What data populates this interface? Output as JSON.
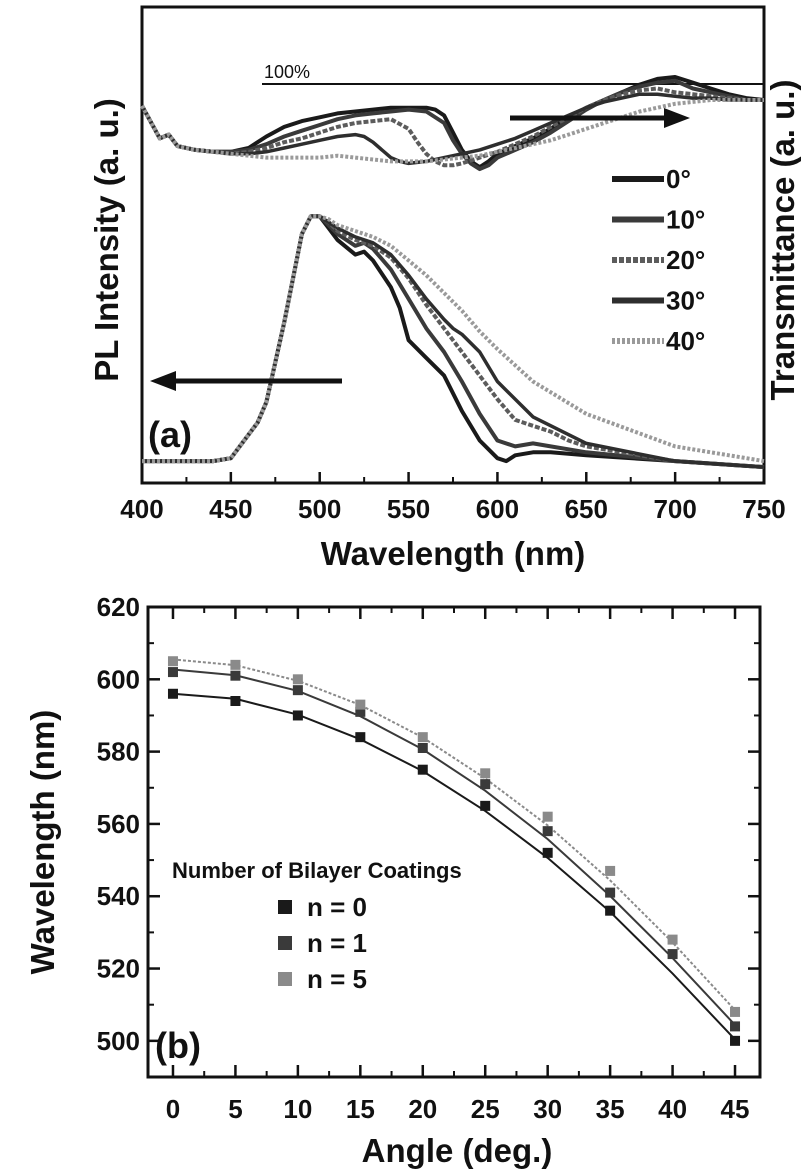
{
  "chart_data": [
    {
      "panel": "a",
      "type": "line",
      "panel_label": "(a)",
      "xlabel": "Wavelength (nm)",
      "ylabel_left": "PL Intensity (a. u.)",
      "ylabel_right": "Transmittance (a. u.)",
      "xlim": [
        400,
        750
      ],
      "xticks": [
        400,
        450,
        500,
        550,
        600,
        650,
        700,
        750
      ],
      "reference_line_label": "100%",
      "legend_placement": "right",
      "colors": {
        "0": "#1a1a1a",
        "10": "#3a3a3a",
        "20": "#5c5c5c",
        "30": "#2e2e2e",
        "40": "#9a9a9a"
      },
      "series": [
        {
          "name": "0°",
          "transmittance": {
            "x": [
              400,
              410,
              415,
              420,
              430,
              440,
              450,
              460,
              470,
              480,
              490,
              500,
              510,
              520,
              530,
              540,
              550,
              560,
              565,
              570,
              575,
              580,
              585,
              590,
              595,
              600,
              610,
              620,
              630,
              640,
              650,
              660,
              670,
              680,
              690,
              700,
              710,
              720,
              730,
              740,
              750
            ],
            "y": [
              97,
              80,
              82,
              76,
              74,
              73,
              73,
              75,
              81,
              86,
              89,
              91,
              93,
              94,
              95,
              96,
              96,
              96,
              95,
              92,
              83,
              74,
              68,
              65,
              68,
              72,
              76,
              80,
              85,
              91,
              96,
              100,
              104,
              108,
              111,
              112,
              109,
              106,
              103,
              101,
              100
            ]
          },
          "pl": {
            "x": [
              400,
              440,
              450,
              455,
              460,
              465,
              470,
              480,
              490,
              495,
              500,
              505,
              510,
              520,
              525,
              530,
              540,
              545,
              550,
              560,
              570,
              580,
              590,
              600,
              605,
              610,
              620,
              630,
              650,
              700,
              750
            ],
            "y": [
              3,
              3,
              4,
              8,
              12,
              16,
              23,
              50,
              80,
              86,
              86,
              82,
              78,
              73,
              74,
              71,
              62,
              55,
              44,
              38,
              32,
              20,
              10,
              4,
              3,
              5,
              6,
              6,
              5,
              3,
              1
            ]
          }
        },
        {
          "name": "10°",
          "transmittance": {
            "x": [
              400,
              410,
              415,
              420,
              430,
              440,
              450,
              460,
              470,
              480,
              490,
              500,
              510,
              520,
              530,
              540,
              550,
              560,
              570,
              575,
              580,
              585,
              590,
              595,
              600,
              610,
              620,
              630,
              640,
              650,
              660,
              670,
              680,
              690,
              700,
              710,
              720,
              730,
              740,
              750
            ],
            "y": [
              97,
              80,
              82,
              76,
              74,
              73,
              73,
              74,
              77,
              81,
              84,
              87,
              90,
              92,
              93,
              94,
              95,
              94,
              88,
              79,
              72,
              67,
              64,
              66,
              70,
              74,
              78,
              83,
              89,
              95,
              100,
              104,
              107,
              109,
              110,
              106,
              104,
              102,
              100,
              100
            ]
          },
          "pl": {
            "x": [
              400,
              440,
              450,
              455,
              460,
              465,
              470,
              480,
              490,
              495,
              500,
              505,
              510,
              520,
              525,
              530,
              540,
              550,
              560,
              570,
              580,
              590,
              600,
              610,
              620,
              630,
              650,
              700,
              750
            ],
            "y": [
              3,
              3,
              4,
              8,
              12,
              16,
              23,
              50,
              80,
              86,
              86,
              83,
              80,
              76,
              77,
              75,
              68,
              58,
              48,
              40,
              30,
              19,
              10,
              8,
              9,
              8,
              6,
              3,
              1
            ]
          }
        },
        {
          "name": "20°",
          "transmittance": {
            "x": [
              400,
              410,
              415,
              420,
              430,
              440,
              450,
              460,
              470,
              480,
              490,
              500,
              510,
              520,
              530,
              540,
              550,
              555,
              560,
              565,
              570,
              575,
              580,
              590,
              600,
              610,
              620,
              630,
              640,
              650,
              660,
              670,
              680,
              690,
              700,
              710,
              720,
              730,
              740,
              750
            ],
            "y": [
              97,
              80,
              82,
              76,
              74,
              73,
              72,
              73,
              75,
              78,
              80,
              83,
              86,
              88,
              89,
              90,
              85,
              78,
              72,
              68,
              66,
              66,
              67,
              70,
              73,
              77,
              81,
              86,
              91,
              96,
              100,
              103,
              105,
              106,
              104,
              103,
              102,
              101,
              100,
              100
            ]
          },
          "pl": {
            "x": [
              400,
              440,
              450,
              455,
              460,
              465,
              470,
              480,
              490,
              495,
              500,
              505,
              510,
              520,
              530,
              540,
              550,
              560,
              570,
              580,
              590,
              600,
              610,
              620,
              630,
              640,
              650,
              700,
              750
            ],
            "y": [
              3,
              3,
              4,
              8,
              12,
              16,
              23,
              50,
              80,
              86,
              86,
              84,
              81,
              78,
              76,
              72,
              65,
              56,
              48,
              40,
              32,
              24,
              17,
              15,
              13,
              10,
              8,
              3,
              1
            ]
          }
        },
        {
          "name": "30°",
          "transmittance": {
            "x": [
              400,
              410,
              415,
              420,
              430,
              440,
              450,
              460,
              470,
              480,
              490,
              500,
              510,
              520,
              525,
              530,
              535,
              540,
              545,
              550,
              560,
              570,
              580,
              590,
              600,
              610,
              620,
              630,
              640,
              650,
              660,
              670,
              680,
              690,
              700,
              710,
              720,
              730,
              740,
              750
            ],
            "y": [
              97,
              80,
              82,
              76,
              74,
              73,
              72,
              72,
              73,
              75,
              77,
              79,
              81,
              82,
              81,
              78,
              74,
              70,
              68,
              67,
              68,
              70,
              72,
              74,
              77,
              80,
              84,
              88,
              92,
              96,
              99,
              101,
              103,
              103,
              102,
              101,
              101,
              100,
              100,
              100
            ]
          },
          "pl": {
            "x": [
              400,
              440,
              450,
              455,
              460,
              465,
              470,
              480,
              490,
              495,
              500,
              505,
              510,
              520,
              530,
              540,
              550,
              560,
              570,
              575,
              580,
              590,
              600,
              620,
              650,
              700,
              750
            ],
            "y": [
              3,
              3,
              4,
              8,
              12,
              16,
              23,
              50,
              80,
              86,
              86,
              84,
              82,
              79,
              77,
              73,
              66,
              58,
              51,
              48,
              46,
              40,
              30,
              18,
              9,
              3,
              1
            ]
          }
        },
        {
          "name": "40°",
          "transmittance": {
            "x": [
              400,
              410,
              415,
              420,
              430,
              440,
              450,
              460,
              470,
              480,
              490,
              500,
              510,
              520,
              530,
              540,
              550,
              560,
              570,
              580,
              590,
              600,
              610,
              620,
              630,
              640,
              650,
              660,
              670,
              680,
              690,
              700,
              710,
              720,
              730,
              740,
              750
            ],
            "y": [
              97,
              80,
              82,
              76,
              74,
              73,
              72,
              71,
              70,
              70,
              70,
              70,
              71,
              70,
              69,
              68,
              68,
              68,
              69,
              70,
              71,
              73,
              75,
              77,
              79,
              82,
              85,
              88,
              91,
              94,
              96,
              98,
              99,
              100,
              100,
              100,
              100
            ]
          },
          "pl": {
            "x": [
              400,
              440,
              450,
              455,
              460,
              465,
              470,
              480,
              490,
              495,
              500,
              505,
              510,
              520,
              530,
              540,
              550,
              560,
              570,
              580,
              590,
              600,
              620,
              650,
              700,
              750
            ],
            "y": [
              3,
              3,
              4,
              8,
              12,
              16,
              23,
              50,
              80,
              86,
              86,
              85,
              83,
              81,
              79,
              76,
              71,
              66,
              60,
              54,
              47,
              41,
              30,
              19,
              8,
              3
            ]
          }
        }
      ]
    },
    {
      "panel": "b",
      "type": "scatter",
      "panel_label": "(b)",
      "xlabel": "Angle (deg.)",
      "ylabel": "Wavelength (nm)",
      "xlim": [
        -2,
        47
      ],
      "ylim": [
        490,
        620
      ],
      "xticks": [
        0,
        5,
        10,
        15,
        20,
        25,
        30,
        35,
        40,
        45
      ],
      "yticks": [
        500,
        520,
        540,
        560,
        580,
        600,
        620
      ],
      "legend_title": "Number of Bilayer Coatings",
      "legend_placement": "bottom-left",
      "x": [
        0,
        5,
        10,
        15,
        20,
        25,
        30,
        35,
        40,
        45
      ],
      "series": [
        {
          "name": "n = 0",
          "values": [
            596,
            594,
            590,
            584,
            575,
            565,
            552,
            536,
            null,
            500
          ],
          "color": "#1a1a1a",
          "fit": [
            596,
            594.6,
            590.2,
            583.4,
            574.6,
            563.6,
            550.6,
            535.7,
            518.6,
            500.4
          ]
        },
        {
          "name": "n = 1",
          "values": [
            602,
            601,
            597,
            591,
            581,
            571,
            558,
            541,
            524,
            504
          ],
          "color": "#3a3a3a",
          "fit": [
            602.7,
            601.1,
            596.8,
            589.8,
            580.6,
            569.2,
            555.8,
            540.1,
            522.9,
            504.4
          ]
        },
        {
          "name": "n = 5",
          "values": [
            605,
            604,
            600,
            593,
            584,
            574,
            562,
            547,
            528,
            508
          ],
          "color": "#8a8a8a",
          "fit": [
            605.5,
            603.9,
            599.6,
            592.9,
            583.9,
            572.6,
            559.6,
            544.4,
            527.2,
            508.5
          ]
        }
      ]
    }
  ]
}
